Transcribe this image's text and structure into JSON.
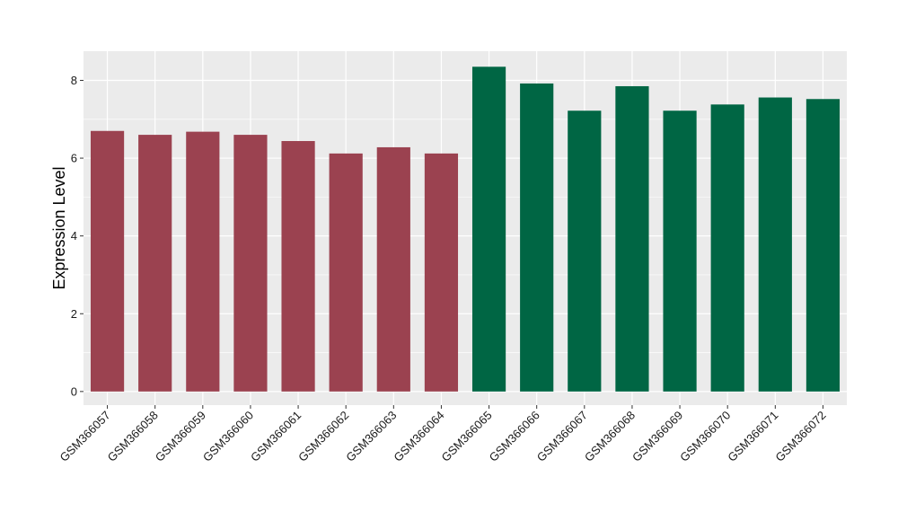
{
  "chart_data": {
    "type": "bar",
    "title": "",
    "xlabel": "",
    "ylabel": "Expression Level",
    "ylim": [
      -0.35,
      8.75
    ],
    "yticks": [
      0,
      2,
      4,
      6,
      8
    ],
    "grid": true,
    "legend": "none",
    "categories": [
      "GSM366057",
      "GSM366058",
      "GSM366059",
      "GSM366060",
      "GSM366061",
      "GSM366062",
      "GSM366063",
      "GSM366064",
      "GSM366065",
      "GSM366066",
      "GSM366067",
      "GSM366068",
      "GSM366069",
      "GSM366070",
      "GSM366071",
      "GSM366072"
    ],
    "values": [
      6.7,
      6.6,
      6.68,
      6.6,
      6.44,
      6.12,
      6.28,
      6.12,
      8.35,
      7.92,
      7.22,
      7.85,
      7.22,
      7.38,
      7.56,
      7.52
    ],
    "bar_colors": [
      "#9b4250",
      "#9b4250",
      "#9b4250",
      "#9b4250",
      "#9b4250",
      "#9b4250",
      "#9b4250",
      "#9b4250",
      "#006644",
      "#006644",
      "#006644",
      "#006644",
      "#006644",
      "#006644",
      "#006644",
      "#006644"
    ],
    "panel_background": "#ebebeb",
    "grid_color": "#ffffff"
  }
}
